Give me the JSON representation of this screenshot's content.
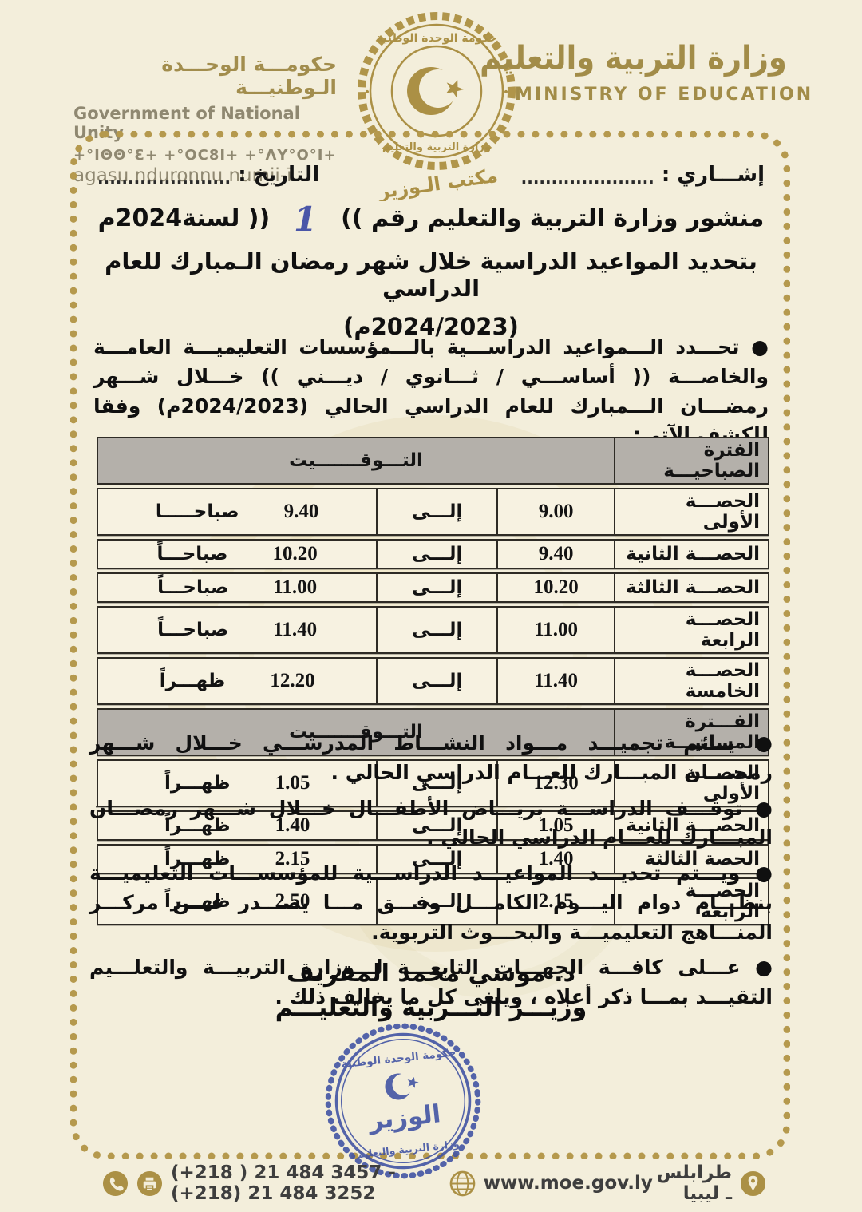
{
  "colors": {
    "paper": "#f3eedb",
    "gold": "#a28c48",
    "chain_gold": "#b5994d",
    "table_header_gray": "#b4b0aa",
    "stamp_blue": "#4254a4",
    "ink_black": "#101010",
    "handwritten_blue": "#4a56a8"
  },
  "header": {
    "gov_ar": "حكومـــة الوحـــدة الـوطنيـــة",
    "gov_en": "Government of National Unity",
    "gov_tifinagh": "+°IΘΘ°Ɛ+  +°OC8I+  +°ΛΥ°O°I+",
    "gov_latin": "agasu nduronnu numii-ī",
    "ministry_ar": "وزارة التربية والتعليم",
    "ministry_en": "MINISTRY OF EDUCATION",
    "seal": {
      "top": "حكومة الوحدة الوطنية",
      "bottom": "وزارة التربية والتعليم",
      "office": "مكتب الـوزير"
    }
  },
  "meta": {
    "ref_label": "إشـــاري :",
    "ref_dots": "......................",
    "date_label": "التاريخ :",
    "date_dots": "......................"
  },
  "title": {
    "l1_pre": "منشور وزارة التربية والتعليم رقم",
    "bracket_open": "((",
    "number": "1",
    "bracket_close": "))",
    "l1_post": "لسنة2024م",
    "l2": "بتحديد المواعيد الدراسية خلال شهر رمضان الـمبارك للعام الدراسي",
    "l3": "(2024/2023م)"
  },
  "intro": "● تحـــدد الـــمواعيد الدراســـية بالـــمؤسسات التعليميـــة العامـــة والخاصـــة (( أساســـي / ثـــانوي / ديـــني )) خـــلال شـــهر رمضـــان الـــمبارك للعام الدراسي الحالي (2024/2023م)  وفقا للكشف الآتي:ـ",
  "table": {
    "sections": [
      {
        "period": "الفترة الصباحيـــة",
        "timing": "التـــوقـــــــيت",
        "rows": [
          {
            "label": "الحصـــة الأولى",
            "from": "9.00",
            "to": "إلـــى",
            "end": "9.40",
            "suffix": "صباحـــــا"
          },
          {
            "label": "الحصـــة الثانية",
            "from": "9.40",
            "to": "إلـــى",
            "end": "10.20",
            "suffix": "صباحـــاً"
          },
          {
            "label": "الحصـــة الثالثة",
            "from": "10.20",
            "to": "إلـــى",
            "end": "11.00",
            "suffix": "صباحـــاً"
          },
          {
            "label": "الحصـــة الرابعة",
            "from": "11.00",
            "to": "إلـــى",
            "end": "11.40",
            "suffix": "صباحـــاً"
          },
          {
            "label": "الحصـــة الخامسة",
            "from": "11.40",
            "to": "إلـــى",
            "end": "12.20",
            "suffix": "ظهـــراً"
          }
        ]
      },
      {
        "period": "الفـــترة المسائيـــة",
        "timing": "التـــوقـــــــيت",
        "rows": [
          {
            "label": "الحصـــة الأولى",
            "from": "12.30",
            "to": "إلـــى",
            "end": "1.05",
            "suffix": "ظهـــراً"
          },
          {
            "label": "الحصـــة الثانية",
            "from": "1.05",
            "to": "إلـــى",
            "end": "1.40",
            "suffix": "ظهـــراً"
          },
          {
            "label": "الحصة الثالثة",
            "from": "1.40",
            "to": "إلـــى",
            "end": "2.15",
            "suffix": "ظهـــراً"
          },
          {
            "label": "الحصـــة الرابعة",
            "from": "2.15",
            "to": "إلـــى",
            "end": "2.50",
            "suffix": "ظهـــراً"
          }
        ]
      }
    ]
  },
  "bullets": [
    "● يـــتم تجميـــد مـــواد النشـــاط المدرســـي خـــلال شـــهر رمضـــان المبـــارك للعـــام الدراسي الحالي .",
    "● توقـــف الدراســـة بريـــاض الأطفـــال خـــلال شـــهر رمضـــان المبـــارك للعـــام الدراسي الحالي .",
    "● ويـــتم تحديـــد المواعيـــد الدراســـية للمؤسســـات التعليميـــة بنظـــام دوام اليـــوم الكامـــل وفـــق مـــا يصـــدر عـــن مركـــز المنـــاهج التعليميـــة والبحـــوث التربوية.",
    "● عـــلى كافـــة الجهـــات التابعـــة لـــوزارة التربيـــة والتعلـــيم التقيـــد بمـــا ذكر أعلاه ، ويلغى كل ما يخالف ذلك ."
  ],
  "signature": {
    "name": "د. موسي محمد المقريف",
    "role": "وزيـــر التـــربية والتعليـــم"
  },
  "stamp": {
    "top": "حكومة الوحدة الوطنية",
    "center": "الوزير",
    "bottom": "وزارة التربية والتعليم"
  },
  "footer": {
    "phones": "(+218 ) 21 484 3457 - (+218) 21 484 3252",
    "site": "www.moe.gov.ly",
    "city": "طرابلس ـ ليبيا"
  }
}
